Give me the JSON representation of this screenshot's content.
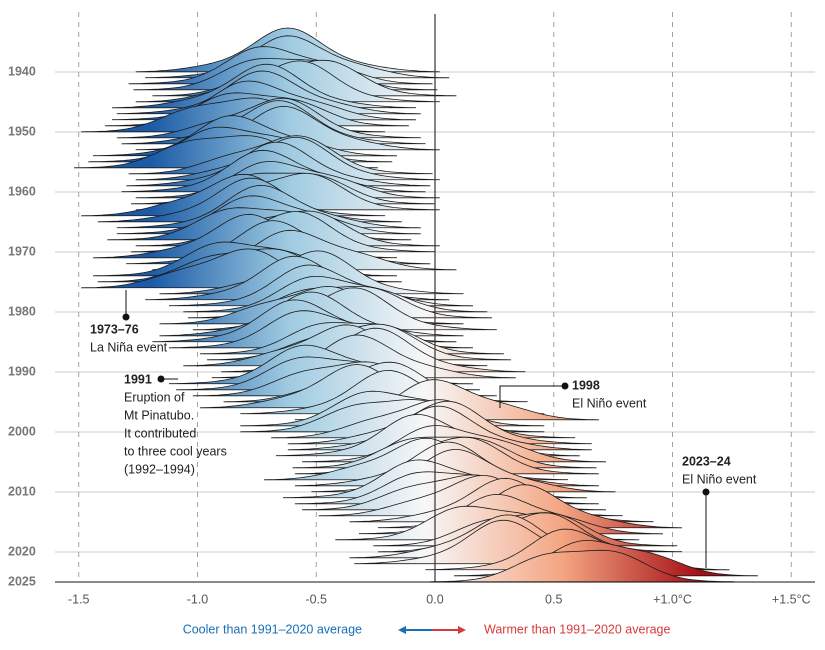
{
  "chart_data": {
    "type": "ridgeline",
    "categories": [
      1940,
      1941,
      1942,
      1943,
      1944,
      1945,
      1946,
      1947,
      1948,
      1949,
      1950,
      1951,
      1952,
      1953,
      1954,
      1955,
      1956,
      1957,
      1958,
      1959,
      1960,
      1961,
      1962,
      1963,
      1964,
      1965,
      1966,
      1967,
      1968,
      1969,
      1970,
      1971,
      1972,
      1973,
      1974,
      1975,
      1976,
      1977,
      1978,
      1979,
      1980,
      1981,
      1982,
      1983,
      1984,
      1985,
      1986,
      1987,
      1988,
      1989,
      1990,
      1991,
      1992,
      1993,
      1994,
      1995,
      1996,
      1997,
      1998,
      1999,
      2000,
      2001,
      2002,
      2003,
      2004,
      2005,
      2006,
      2007,
      2008,
      2009,
      2010,
      2011,
      2012,
      2013,
      2014,
      2015,
      2016,
      2017,
      2018,
      2019,
      2020,
      2021,
      2022,
      2023,
      2024,
      2025
    ],
    "values": [
      -0.62,
      -0.58,
      -0.65,
      -0.63,
      -0.55,
      -0.62,
      -0.72,
      -0.7,
      -0.72,
      -0.75,
      -0.85,
      -0.7,
      -0.68,
      -0.62,
      -0.8,
      -0.82,
      -0.88,
      -0.65,
      -0.62,
      -0.66,
      -0.68,
      -0.62,
      -0.64,
      -0.62,
      -0.85,
      -0.78,
      -0.7,
      -0.7,
      -0.74,
      -0.62,
      -0.64,
      -0.8,
      -0.66,
      -0.55,
      -0.8,
      -0.78,
      -0.85,
      -0.52,
      -0.58,
      -0.48,
      -0.42,
      -0.4,
      -0.52,
      -0.38,
      -0.52,
      -0.55,
      -0.48,
      -0.35,
      -0.32,
      -0.42,
      -0.26,
      -0.3,
      -0.48,
      -0.45,
      -0.38,
      -0.25,
      -0.35,
      -0.18,
      0.05,
      -0.18,
      -0.18,
      -0.05,
      0.02,
      0.02,
      -0.03,
      0.08,
      0.04,
      0.05,
      -0.08,
      0.05,
      0.12,
      0.0,
      0.05,
      0.08,
      0.15,
      0.28,
      0.4,
      0.32,
      0.22,
      0.38,
      0.4,
      0.28,
      0.3,
      0.6,
      0.72,
      0.62
    ],
    "colors": [
      "#1a5aa6",
      "#9ecae1",
      "#f7f7f7",
      "#f4a582",
      "#a50f15"
    ],
    "xlim": [
      -1.6,
      1.6
    ],
    "xticks": [
      -1.5,
      {
        "value": -1.0,
        "label": "-1.0"
      },
      -0.5,
      {
        "value": 0.0,
        "label": "0.0"
      },
      0.5,
      {
        "value": 1.0,
        "label": "+1.0°C"
      },
      {
        "value": 1.5,
        "label": "+1.5°C"
      }
    ],
    "ylim": [
      1930,
      2025
    ],
    "yticks": [
      1940,
      1950,
      1960,
      1970,
      1980,
      1990,
      2000,
      2010,
      2020,
      2025
    ],
    "grid": true,
    "annotations": [
      {
        "label": "1973–76",
        "text": [
          "La Niña event"
        ]
      },
      {
        "label": "1991",
        "text": [
          "Eruption of",
          "Mt Pinatubo.",
          "It contributed",
          "to three cool years",
          "(1992–1994)"
        ]
      },
      {
        "label": "1998",
        "text": [
          "El Niño event"
        ]
      },
      {
        "label": "2023–24",
        "text": [
          "El Niño event"
        ]
      }
    ],
    "legend": {
      "cool": "Cooler than 1991–2020 average",
      "cool_color": "#1a6fb5",
      "warm": "Warmer than 1991–2020 average",
      "warm_color": "#d63a3a"
    }
  }
}
